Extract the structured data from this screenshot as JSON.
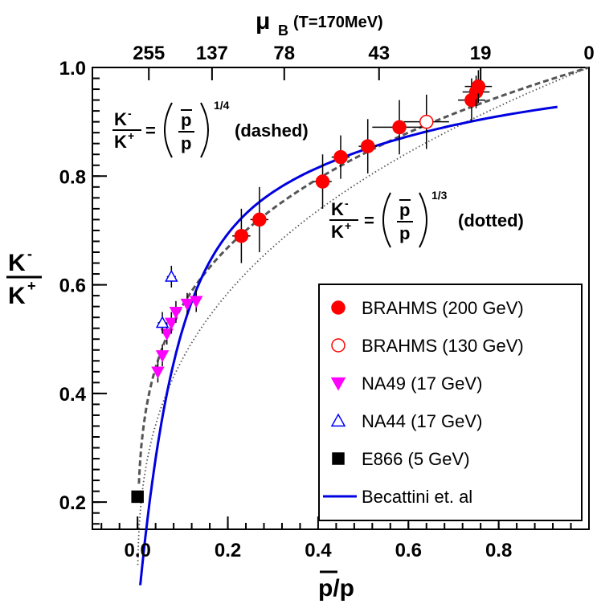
{
  "chart_data": {
    "type": "scatter",
    "x_label": "p/p",
    "y_label_num": "K",
    "y_label_num_sup": "-",
    "y_label_den": "K",
    "y_label_den_sup": "+",
    "top_axis_label": "μ",
    "top_axis_label_sub": "B",
    "top_axis_label_cond": "(T=170MeV)",
    "xlim": [
      -0.1,
      1.0
    ],
    "ylim": [
      0.15,
      1.0
    ],
    "x_ticks": [
      {
        "v": 0.0,
        "label": "0.0"
      },
      {
        "v": 0.2,
        "label": "0.2"
      },
      {
        "v": 0.4,
        "label": "0.4"
      },
      {
        "v": 0.6,
        "label": "0.6"
      },
      {
        "v": 0.8,
        "label": "0.8"
      }
    ],
    "y_ticks": [
      {
        "v": 0.2,
        "label": "0.2"
      },
      {
        "v": 0.4,
        "label": "0.4"
      },
      {
        "v": 0.6,
        "label": "0.6"
      },
      {
        "v": 0.8,
        "label": "0.8"
      },
      {
        "v": 1.0,
        "label": "1.0"
      }
    ],
    "top_ticks": [
      {
        "x": 0.025,
        "label": "255"
      },
      {
        "x": 0.165,
        "label": "137"
      },
      {
        "x": 0.325,
        "label": "78"
      },
      {
        "x": 0.535,
        "label": "43"
      },
      {
        "x": 0.76,
        "label": "19"
      },
      {
        "x": 1.0,
        "label": "0"
      }
    ],
    "formula_dashed": {
      "lhs_num": "K",
      "lhs_num_sup": "-",
      "lhs_den": "K",
      "lhs_den_sup": "+",
      "frac_num": "p",
      "frac_den": "p",
      "power": "1/4",
      "tag": "(dashed)"
    },
    "formula_dotted": {
      "lhs_num": "K",
      "lhs_num_sup": "-",
      "lhs_den": "K",
      "lhs_den_sup": "+",
      "frac_num": "p",
      "frac_den": "p",
      "power": "1/3",
      "tag": "(dotted)"
    },
    "curves": {
      "becattini": {
        "color": "#0000e0"
      },
      "dashed_power": 0.25,
      "dotted_power": 0.3333
    },
    "series": [
      {
        "name": "BRAHMS (200 GeV)",
        "marker": "circle",
        "filled": true,
        "color": "#ff0000",
        "points": [
          {
            "x": 0.23,
            "y": 0.69,
            "ey": 0.05,
            "ex": 0.02
          },
          {
            "x": 0.27,
            "y": 0.72,
            "ey": 0.06,
            "ex": 0.02
          },
          {
            "x": 0.41,
            "y": 0.79,
            "ey": 0.05,
            "ex": 0.02
          },
          {
            "x": 0.45,
            "y": 0.835,
            "ey": 0.04,
            "ex": 0.02
          },
          {
            "x": 0.51,
            "y": 0.855,
            "ey": 0.05,
            "ex": 0.02
          },
          {
            "x": 0.58,
            "y": 0.89,
            "ey": 0.05,
            "ex": 0.06
          },
          {
            "x": 0.74,
            "y": 0.94,
            "ey": 0.04,
            "ex": 0.03
          },
          {
            "x": 0.75,
            "y": 0.955,
            "ey": 0.03,
            "ex": 0.03
          },
          {
            "x": 0.755,
            "y": 0.965,
            "ey": 0.03,
            "ex": 0.03
          }
        ]
      },
      {
        "name": "BRAHMS (130 GeV)",
        "marker": "circle",
        "filled": false,
        "color": "#ff0000",
        "points": [
          {
            "x": 0.64,
            "y": 0.9,
            "ey": 0.05,
            "ex": 0.05
          }
        ]
      },
      {
        "name": "NA49 (17 GeV)",
        "marker": "triangle-down",
        "filled": true,
        "color": "#ff00ff",
        "points": [
          {
            "x": 0.045,
            "y": 0.44,
            "ey": 0.02,
            "ex": 0.0
          },
          {
            "x": 0.055,
            "y": 0.47,
            "ey": 0.02,
            "ex": 0.0
          },
          {
            "x": 0.065,
            "y": 0.51,
            "ey": 0.02,
            "ex": 0.0
          },
          {
            "x": 0.075,
            "y": 0.53,
            "ey": 0.02,
            "ex": 0.0
          },
          {
            "x": 0.085,
            "y": 0.55,
            "ey": 0.02,
            "ex": 0.0
          },
          {
            "x": 0.11,
            "y": 0.565,
            "ey": 0.02,
            "ex": 0.0
          },
          {
            "x": 0.13,
            "y": 0.57,
            "ey": 0.02,
            "ex": 0.0
          }
        ]
      },
      {
        "name": "NA44 (17 GeV)",
        "marker": "triangle-up",
        "filled": false,
        "color": "#0000ff",
        "points": [
          {
            "x": 0.055,
            "y": 0.53,
            "ey": 0.02,
            "ex": 0.01
          },
          {
            "x": 0.075,
            "y": 0.615,
            "ey": 0.02,
            "ex": 0.01
          }
        ]
      },
      {
        "name": "E866 (5 GeV)",
        "marker": "square",
        "filled": true,
        "color": "#000000",
        "points": [
          {
            "x": 0.0,
            "y": 0.21,
            "ey": 0.01,
            "ex": 0.0
          }
        ]
      }
    ],
    "legend": [
      {
        "label": "BRAHMS (200 GeV)",
        "marker": "circle",
        "filled": true,
        "color": "#ff0000"
      },
      {
        "label": "BRAHMS (130 GeV)",
        "marker": "circle",
        "filled": false,
        "color": "#ff0000"
      },
      {
        "label": "NA49 (17 GeV)",
        "marker": "triangle-down",
        "filled": true,
        "color": "#ff00ff"
      },
      {
        "label": "NA44 (17 GeV)",
        "marker": "triangle-up",
        "filled": false,
        "color": "#0000ff"
      },
      {
        "label": "E866 (5 GeV)",
        "marker": "square",
        "filled": true,
        "color": "#000000"
      },
      {
        "label": "Becattini et. al",
        "marker": "line",
        "filled": true,
        "color": "#0000e0"
      }
    ],
    "legend_position": "bottom-right",
    "grid": false
  }
}
